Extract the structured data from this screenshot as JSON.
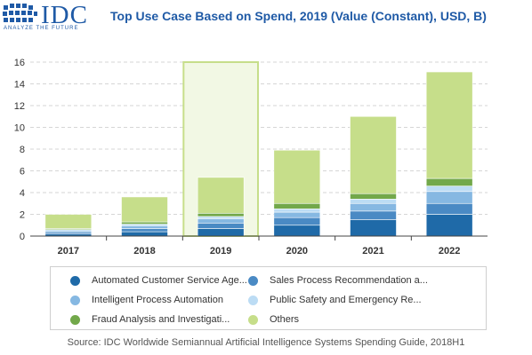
{
  "logo": {
    "wordmark": "IDC",
    "tagline": "ANALYZE THE FUTURE"
  },
  "chart_data": {
    "type": "bar",
    "stacked": true,
    "title": "Top Use Case Based on Spend, 2019 (Value (Constant), USD, B)",
    "categories": [
      "2017",
      "2018",
      "2019",
      "2020",
      "2021",
      "2022"
    ],
    "ylim": [
      0,
      16
    ],
    "yticks": [
      0,
      2,
      4,
      6,
      8,
      10,
      12,
      14,
      16
    ],
    "grid": true,
    "highlight_category": "2019",
    "legend_position": "bottom",
    "series": [
      {
        "name": "Automated Customer Service Age...",
        "color": "#1f6aa8",
        "values": [
          0.2,
          0.4,
          0.7,
          1.0,
          1.5,
          2.0
        ]
      },
      {
        "name": "Sales Process Recommendation a...",
        "color": "#4a8ac4",
        "values": [
          0.15,
          0.3,
          0.5,
          0.7,
          0.8,
          1.0
        ]
      },
      {
        "name": "Intelligent Process Automation",
        "color": "#86b8e2",
        "values": [
          0.15,
          0.25,
          0.4,
          0.5,
          0.7,
          1.1
        ]
      },
      {
        "name": "Public Safety and Emergency Re...",
        "color": "#bcdcf4",
        "values": [
          0.1,
          0.15,
          0.2,
          0.3,
          0.4,
          0.5
        ]
      },
      {
        "name": "Fraud Analysis and Investigati...",
        "color": "#72a84a",
        "values": [
          0.1,
          0.2,
          0.3,
          0.5,
          0.5,
          0.7
        ]
      },
      {
        "name": "Others",
        "color": "#c6de8a",
        "values": [
          1.3,
          2.3,
          3.3,
          4.9,
          7.1,
          9.8
        ]
      }
    ]
  },
  "source": "Source: IDC Worldwide Semiannual Artificial Intelligence Systems Spending Guide, 2018H1"
}
